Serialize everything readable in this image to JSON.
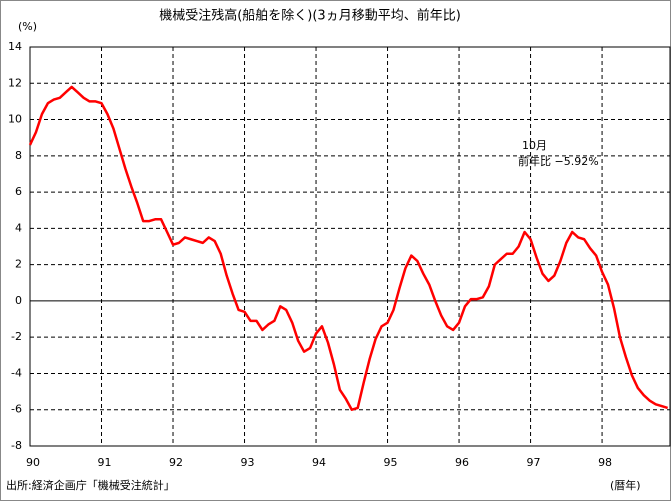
{
  "chart_data": {
    "type": "line",
    "title": "機械受注残高(船舶を除く)(3ヵ月移動平均、前年比)",
    "y_unit_label": "(%)",
    "x_unit_label": "(暦年)",
    "source": "出所:経済企画庁「機械受注統計」",
    "annotation": [
      "10月",
      "前年比 −5.92%"
    ],
    "xlim": [
      90,
      98.95
    ],
    "xticks": [
      90,
      91,
      92,
      93,
      94,
      95,
      96,
      97,
      98
    ],
    "ylim": [
      -8,
      14
    ],
    "yticks": [
      -8,
      -6,
      -4,
      -2,
      0,
      2,
      4,
      6,
      8,
      10,
      12,
      14
    ],
    "grid": true,
    "series": [
      {
        "name": "前年比",
        "color": "#ff0000",
        "x": [
          90,
          90.083,
          90.167,
          90.25,
          90.333,
          90.417,
          90.5,
          90.583,
          90.667,
          90.75,
          90.833,
          90.917,
          91,
          91.083,
          91.167,
          91.25,
          91.333,
          91.417,
          91.5,
          91.583,
          91.667,
          91.75,
          91.833,
          91.917,
          92,
          92.083,
          92.167,
          92.25,
          92.333,
          92.417,
          92.5,
          92.583,
          92.667,
          92.75,
          92.833,
          92.917,
          93,
          93.083,
          93.167,
          93.25,
          93.333,
          93.417,
          93.5,
          93.583,
          93.667,
          93.75,
          93.833,
          93.917,
          94,
          94.083,
          94.167,
          94.25,
          94.333,
          94.417,
          94.5,
          94.583,
          94.667,
          94.75,
          94.833,
          94.917,
          95,
          95.083,
          95.167,
          95.25,
          95.333,
          95.417,
          95.5,
          95.583,
          95.667,
          95.75,
          95.833,
          95.917,
          96,
          96.083,
          96.167,
          96.25,
          96.333,
          96.417,
          96.5,
          96.583,
          96.667,
          96.75,
          96.833,
          96.917,
          97,
          97.083,
          97.167,
          97.25,
          97.333,
          97.417,
          97.5,
          97.583,
          97.667,
          97.75,
          97.833,
          97.917,
          98,
          98.083,
          98.167,
          98.25,
          98.333,
          98.417,
          98.5,
          98.583,
          98.667,
          98.75,
          98.833,
          98.917
        ],
        "values": [
          8.6,
          9.3,
          10.3,
          10.9,
          11.1,
          11.2,
          11.5,
          11.8,
          11.5,
          11.2,
          11.0,
          11.0,
          10.9,
          10.3,
          9.5,
          8.4,
          7.3,
          6.3,
          5.4,
          4.4,
          4.4,
          4.5,
          4.5,
          3.8,
          3.1,
          3.2,
          3.5,
          3.4,
          3.3,
          3.2,
          3.5,
          3.3,
          2.6,
          1.4,
          0.4,
          -0.5,
          -0.6,
          -1.1,
          -1.1,
          -1.6,
          -1.3,
          -1.1,
          -0.3,
          -0.5,
          -1.2,
          -2.2,
          -2.8,
          -2.6,
          -1.8,
          -1.4,
          -2.3,
          -3.5,
          -4.9,
          -5.4,
          -6.0,
          -5.9,
          -4.5,
          -3.2,
          -2.1,
          -1.4,
          -1.2,
          -0.5,
          0.7,
          1.8,
          2.5,
          2.2,
          1.5,
          0.9,
          0.0,
          -0.8,
          -1.4,
          -1.6,
          -1.2,
          -0.3,
          0.1,
          0.1,
          0.2,
          0.8,
          2.0,
          2.3,
          2.6,
          2.6,
          3.0,
          3.8,
          3.4,
          2.4,
          1.5,
          1.1,
          1.4,
          2.2,
          3.2,
          3.8,
          3.5,
          3.4,
          2.9,
          2.5,
          1.6,
          0.9,
          -0.4,
          -2.0,
          -3.1,
          -4.1,
          -4.8,
          -5.2,
          -5.5,
          -5.7,
          -5.8,
          -5.9
        ]
      }
    ]
  }
}
